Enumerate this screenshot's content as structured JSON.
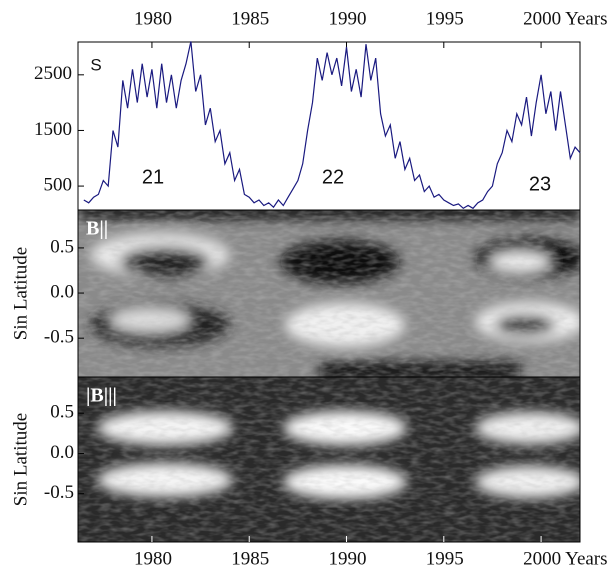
{
  "chart_data": [
    {
      "type": "line",
      "annotations": [
        "S",
        "21",
        "22",
        "23"
      ],
      "x": [
        1976.5,
        1976.75,
        1977,
        1977.25,
        1977.5,
        1977.75,
        1978,
        1978.25,
        1978.5,
        1978.75,
        1979,
        1979.25,
        1979.5,
        1979.75,
        1980,
        1980.25,
        1980.5,
        1980.75,
        1981,
        1981.25,
        1981.5,
        1981.75,
        1982,
        1982.25,
        1982.5,
        1982.75,
        1983,
        1983.25,
        1983.5,
        1983.75,
        1984,
        1984.25,
        1984.5,
        1984.75,
        1985,
        1985.25,
        1985.5,
        1985.75,
        1986,
        1986.25,
        1986.5,
        1986.75,
        1987,
        1987.25,
        1987.5,
        1987.75,
        1988,
        1988.25,
        1988.5,
        1988.75,
        1989,
        1989.25,
        1989.5,
        1989.75,
        1990,
        1990.25,
        1990.5,
        1990.75,
        1991,
        1991.25,
        1991.5,
        1991.75,
        1992,
        1992.25,
        1992.5,
        1992.75,
        1993,
        1993.25,
        1993.5,
        1993.75,
        1994,
        1994.25,
        1994.5,
        1994.75,
        1995,
        1995.25,
        1995.5,
        1995.75,
        1996,
        1996.25,
        1996.5,
        1996.75,
        1997,
        1997.25,
        1997.5,
        1997.75,
        1998,
        1998.25,
        1998.5,
        1998.75,
        1999,
        1999.25,
        1999.5,
        1999.75,
        2000,
        2000.25,
        2000.5,
        2000.75,
        2001,
        2001.25,
        2001.5,
        2001.75,
        2002
      ],
      "series": [
        {
          "name": "S",
          "color": "#1a1a80",
          "values": [
            250,
            200,
            300,
            350,
            600,
            500,
            1500,
            1200,
            2400,
            1900,
            2600,
            2000,
            2700,
            2100,
            2600,
            1900,
            2700,
            2000,
            2500,
            1900,
            2400,
            2700,
            3100,
            2200,
            2500,
            1600,
            1900,
            1300,
            1500,
            900,
            1100,
            600,
            800,
            350,
            300,
            200,
            250,
            150,
            200,
            120,
            250,
            150,
            300,
            450,
            600,
            900,
            1500,
            2000,
            2800,
            2400,
            2900,
            2500,
            2800,
            2300,
            3000,
            2200,
            2600,
            2100,
            3050,
            2400,
            2800,
            1800,
            1400,
            1600,
            1000,
            1300,
            800,
            1000,
            600,
            700,
            400,
            500,
            300,
            350,
            250,
            200,
            150,
            180,
            100,
            150,
            100,
            200,
            250,
            400,
            500,
            900,
            1100,
            1500,
            1300,
            1800,
            1600,
            2100,
            1400,
            2000,
            2500,
            1800,
            2200,
            1500,
            2200,
            1600,
            1000,
            1200,
            1100
          ]
        }
      ],
      "xlim": [
        1976.2,
        2002.0
      ],
      "xticks": [
        1980,
        1985,
        1990,
        1995,
        {
          "value": 2000,
          "label": "2000 Years"
        }
      ],
      "ylim": [
        70,
        3090
      ],
      "yticks": [
        500,
        1500,
        2500
      ]
    },
    {
      "type": "image",
      "label": "B||",
      "y_label": "Sin Latitude",
      "xlim": [
        1976.2,
        2002.0
      ],
      "ylim": [
        -0.93,
        0.92
      ],
      "yticks": [
        0.5,
        {
          "value": 0,
          "label": "0.0"
        },
        -0.5
      ]
    },
    {
      "type": "image",
      "label": "|B|||",
      "y_label": "Sin Latitude",
      "xlim": [
        1976.2,
        2002.0
      ],
      "ylim": [
        -1.1,
        0.95
      ],
      "xticks": [
        1980,
        1985,
        1990,
        1995,
        {
          "value": 2000,
          "label": "2000 Years"
        }
      ],
      "yticks": [
        0.5,
        {
          "value": 0,
          "label": "0.0"
        },
        -0.5
      ]
    }
  ]
}
